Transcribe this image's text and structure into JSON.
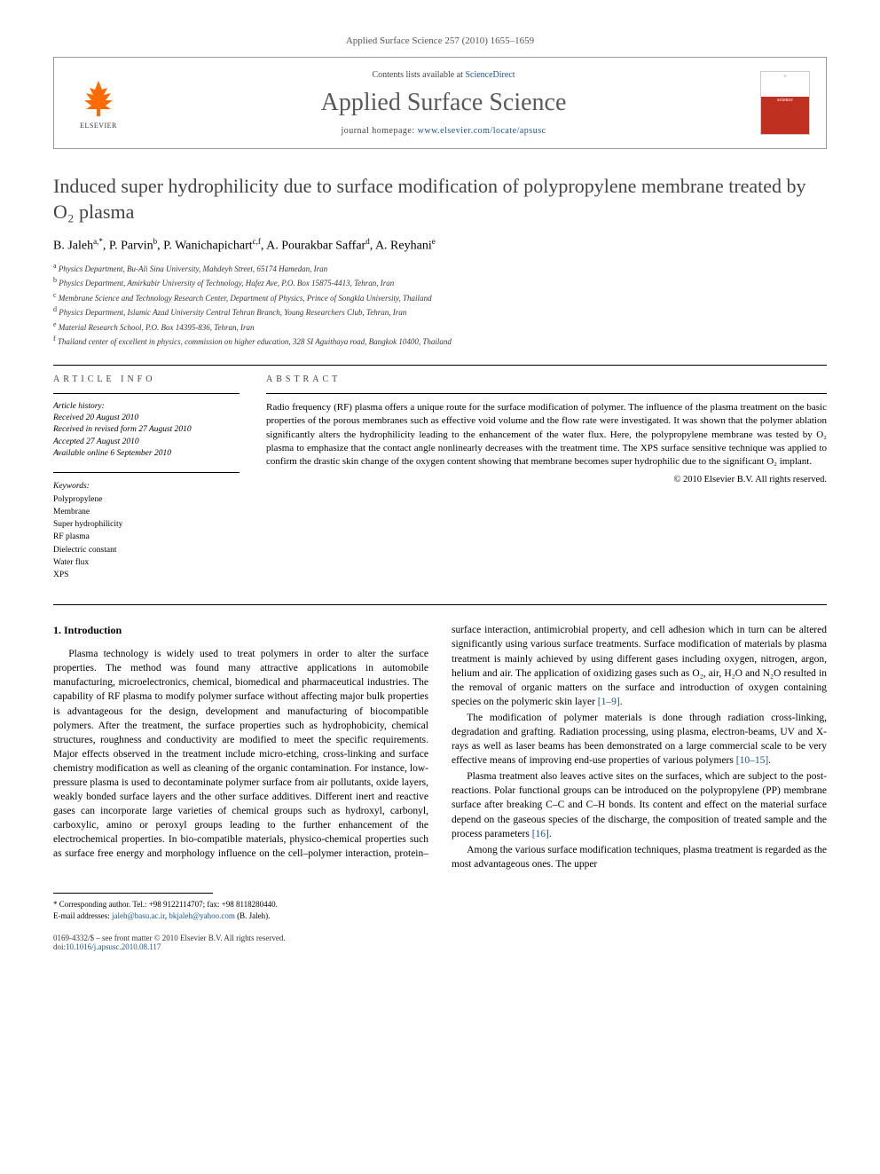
{
  "top_citation": "Applied Surface Science 257 (2010) 1655–1659",
  "header": {
    "contents_prefix": "Contents lists available at ",
    "contents_link": "ScienceDirect",
    "journal_name": "Applied Surface Science",
    "homepage_prefix": "journal homepage: ",
    "homepage_url": "www.elsevier.com/locate/apsusc",
    "elsevier_label": "ELSEVIER",
    "cover_top": "≡",
    "cover_title": "applied surface science"
  },
  "title": "Induced super hydrophilicity due to surface modification of polypropylene membrane treated by O₂ plasma",
  "authors_html": "B. Jaleh<sup>a,*</sup>, P. Parvin<sup>b</sup>, P. Wanichapichart<sup>c,f</sup>, A. Pourakbar Saffar<sup>d</sup>, A. Reyhani<sup>e</sup>",
  "affiliations": [
    {
      "sup": "a",
      "text": "Physics Department, Bu-Ali Sina University, Mahdeyh Street, 65174 Hamedan, Iran"
    },
    {
      "sup": "b",
      "text": "Physics Department, Amirkabir University of Technology, Hafez Ave, P.O. Box 15875-4413, Tehran, Iran"
    },
    {
      "sup": "c",
      "text": "Membrane Science and Technology Research Center, Department of Physics, Prince of Songkla University, Thailand"
    },
    {
      "sup": "d",
      "text": "Physics Department, Islamic Azad University Central Tehran Branch, Young Researchers Club, Tehran, Iran"
    },
    {
      "sup": "e",
      "text": "Material Research School, P.O. Box 14395-836, Tehran, Iran"
    },
    {
      "sup": "f",
      "text": "Thailand center of excellent in physics, commission on higher education, 328 SI Aguithaya road, Bangkok 10400, Thailand"
    }
  ],
  "article_info": {
    "label": "article info",
    "history_label": "Article history:",
    "received": "Received 20 August 2010",
    "revised": "Received in revised form 27 August 2010",
    "accepted": "Accepted 27 August 2010",
    "online": "Available online 6 September 2010",
    "keywords_label": "Keywords:",
    "keywords": [
      "Polypropylene",
      "Membrane",
      "Super hydrophilicity",
      "RF plasma",
      "Dielectric constant",
      "Water flux",
      "XPS"
    ]
  },
  "abstract": {
    "label": "abstract",
    "text": "Radio frequency (RF) plasma offers a unique route for the surface modification of polymer. The influence of the plasma treatment on the basic properties of the porous membranes such as effective void volume and the flow rate were investigated. It was shown that the polymer ablation significantly alters the hydrophilicity leading to the enhancement of the water flux. Here, the polypropylene membrane was tested by O₂ plasma to emphasize that the contact angle nonlinearly decreases with the treatment time. The XPS surface sensitive technique was applied to confirm the drastic skin change of the oxygen content showing that membrane becomes super hydrophilic due to the significant O₂ implant.",
    "copyright": "© 2010 Elsevier B.V. All rights reserved."
  },
  "body": {
    "section_heading": "1. Introduction",
    "p1": "Plasma technology is widely used to treat polymers in order to alter the surface properties. The method was found many attractive applications in automobile manufacturing, microelectronics, chemical, biomedical and pharmaceutical industries. The capability of RF plasma to modify polymer surface without affecting major bulk properties is advantageous for the design, development and manufacturing of biocompatible polymers. After the treatment, the surface properties such as hydrophobicity, chemical structures, roughness and conductivity are modified to meet the specific requirements. Major effects observed in the treatment include micro-etching, cross-linking and surface chemistry modification as well as cleaning of the organic contamination. For instance, low-pressure plasma is used to decontaminate polymer surface from air pollutants, oxide layers, weakly bonded surface layers and the other surface additives. Different inert and reactive gases can incorporate large varieties of chemical groups such as hydroxyl, carbonyl, carboxylic, amino or peroxyl groups leading to the further enhancement of the electrochemical properties. In bio-",
    "p1b": "compatible materials, physico-chemical properties such as surface free energy and morphology influence on the cell–polymer interaction, protein–surface interaction, antimicrobial property, and cell adhesion which in turn can be altered significantly using various surface treatments. Surface modification of materials by plasma treatment is mainly achieved by using different gases including oxygen, nitrogen, argon, helium and air. The application of oxidizing gases such as O₂, air, H₂O and N₂O resulted in the removal of organic matters on the surface and introduction of oxygen containing species on the polymeric skin layer ",
    "ref1": "[1–9]",
    "p1c": ".",
    "p2a": "The modification of polymer materials is done through radiation cross-linking, degradation and grafting. Radiation processing, using plasma, electron-beams, UV and X-rays as well as laser beams has been demonstrated on a large commercial scale to be very effective means of improving end-use properties of various polymers ",
    "ref2": "[10–15]",
    "p2b": ".",
    "p3a": "Plasma treatment also leaves active sites on the surfaces, which are subject to the post-reactions. Polar functional groups can be introduced on the polypropylene (PP) membrane surface after breaking C–C and C–H bonds. Its content and effect on the material surface depend on the gaseous species of the discharge, the composition of treated sample and the process parameters ",
    "ref3": "[16]",
    "p3b": ".",
    "p4": "Among the various surface modification techniques, plasma treatment is regarded as the most advantageous ones. The upper"
  },
  "corr": {
    "line1": "* Corresponding author. Tel.: +98 9122114707; fax: +98 8118280440.",
    "email_label": "E-mail addresses: ",
    "email1": "jaleh@basu.ac.ir",
    "email_sep": ", ",
    "email2": "bkjaleh@yahoo.com",
    "email_tail": " (B. Jaleh)."
  },
  "footer": {
    "left_line1": "0169-4332/$ – see front matter © 2010 Elsevier B.V. All rights reserved.",
    "doi_label": "doi:",
    "doi": "10.1016/j.apsusc.2010.08.117"
  }
}
